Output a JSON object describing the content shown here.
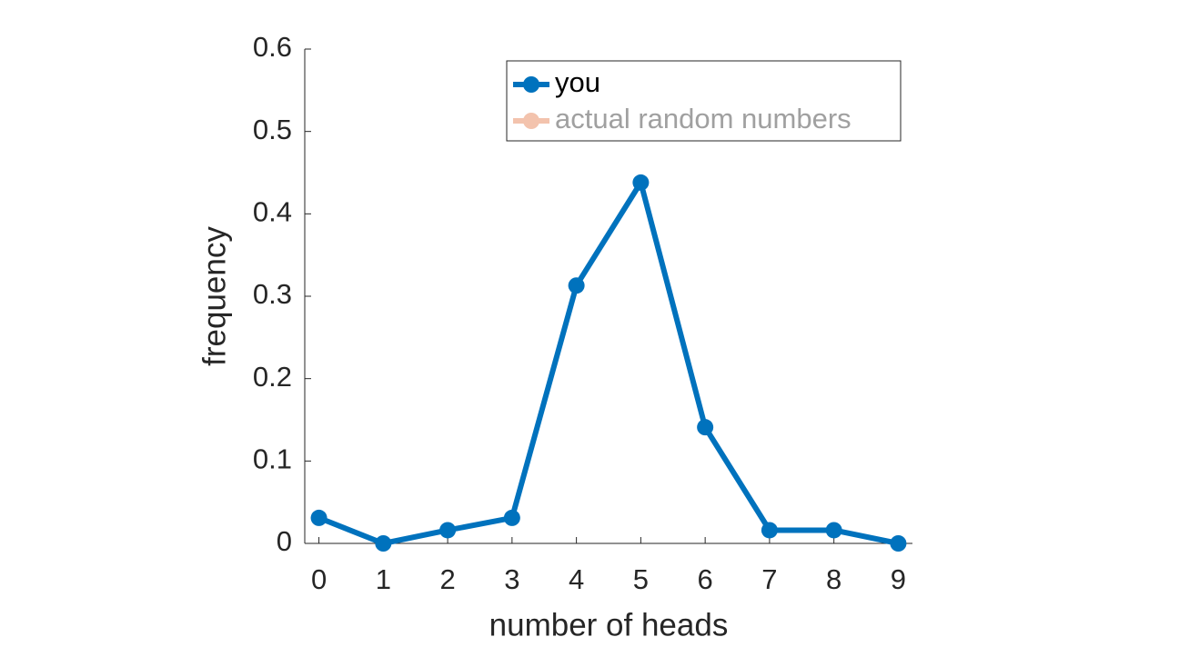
{
  "chart_data": {
    "type": "line",
    "xlabel": "number of heads",
    "ylabel": "frequency",
    "x": [
      0,
      1,
      2,
      3,
      4,
      5,
      6,
      7,
      8,
      9
    ],
    "series": [
      {
        "name": "you",
        "color": "#0072bd",
        "values": [
          0.031,
          0,
          0.016,
          0.031,
          0.313,
          0.438,
          0.141,
          0.016,
          0.016,
          0
        ],
        "visible": true
      },
      {
        "name": "actual random numbers",
        "color": "#f3c3ad",
        "values": [
          null,
          null,
          null,
          null,
          null,
          null,
          null,
          null,
          null,
          null
        ],
        "visible": false
      }
    ],
    "xlim": [
      -0.22,
      9.22
    ],
    "xticks": [
      0,
      1,
      2,
      3,
      4,
      5,
      6,
      7,
      8,
      9
    ],
    "ylim": [
      0,
      0.6
    ],
    "yticks": [
      0,
      0.1,
      0.2,
      0.3,
      0.4,
      0.5,
      0.6
    ],
    "grid": false,
    "legend": "upper right"
  }
}
